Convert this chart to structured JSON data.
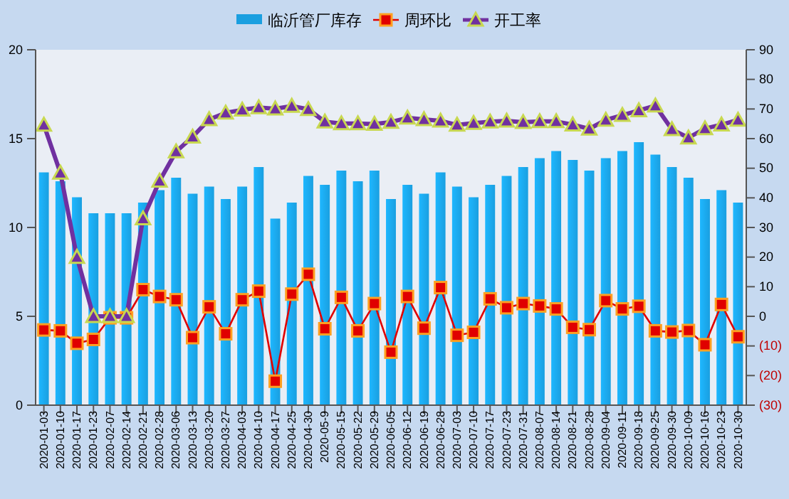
{
  "chart_data": {
    "type": "bar",
    "categories": [
      "2020-01-03",
      "2020-01-10",
      "2020-01-17",
      "2020-01-23",
      "2020-02-07",
      "2020-02-14",
      "2020-02-21",
      "2020-02-28",
      "2020-03-06",
      "2020-03-13",
      "2020-03-20",
      "2020-03-27",
      "2020-04-03",
      "2020-04-10",
      "2020-04-17",
      "2020-04-25",
      "2020-04-30",
      "2020-05-9",
      "2020-05-15",
      "2020-05-22",
      "2020-05-29",
      "2020-06-05",
      "2020-06-12",
      "2020-06-19",
      "2020-06-28",
      "2020-07-03",
      "2020-07-10",
      "2020-07-17",
      "2020-07-23",
      "2020-07-31",
      "2020-08-07",
      "2020-08-14",
      "2020-08-21",
      "2020-08-28",
      "2020-09-04",
      "2020-09-11",
      "2020-09-18",
      "2020-09-25",
      "2020-09-30",
      "2020-10-09",
      "2020-10-16",
      "2020-10-23",
      "2020-10-30"
    ],
    "series": [
      {
        "name": "临沂管厂库存",
        "color": "#1a9fe0",
        "values": [
          13.1,
          12.6,
          11.7,
          10.8,
          10.8,
          10.8,
          11.4,
          12.1,
          12.8,
          11.9,
          12.3,
          11.6,
          12.3,
          13.4,
          10.5,
          11.4,
          12.9,
          12.4,
          13.2,
          12.6,
          13.2,
          11.6,
          12.4,
          11.9,
          13.1,
          12.3,
          11.7,
          12.4,
          12.9,
          13.4,
          13.9,
          14.3,
          13.8,
          13.2,
          13.9,
          14.3,
          14.8,
          14.1,
          13.4,
          12.8,
          11.6,
          12.1,
          11.4
        ]
      },
      {
        "name": "周环比",
        "type": "line",
        "axis": "y2",
        "marker": "square",
        "color": "#e00000",
        "values": [
          -4.6,
          -4.9,
          -9.1,
          -7.8,
          -0.5,
          -0.5,
          9,
          6.7,
          5.6,
          -7.2,
          3.2,
          -5.9,
          5.6,
          8.5,
          -21.9,
          7.5,
          14.2,
          -4.2,
          6.4,
          -4.9,
          4.3,
          -12.1,
          6.7,
          -4,
          9.7,
          -6.4,
          -5.4,
          5.9,
          2.9,
          4.3,
          3.5,
          2.5,
          -3.7,
          -4.5,
          5.3,
          2.5,
          3.4,
          -4.9,
          -5.3,
          -4.8,
          -9.6,
          4,
          -6.9
        ]
      },
      {
        "name": "开工率",
        "type": "line",
        "axis": "y2",
        "marker": "triangle",
        "color": "#7030a0",
        "values": [
          64.6,
          48.4,
          20,
          0,
          0,
          0,
          33,
          45.7,
          55.6,
          60.6,
          66.5,
          68.7,
          69.7,
          70.5,
          70.1,
          71,
          69.9,
          65.7,
          65.1,
          65.1,
          64.9,
          65.6,
          67,
          66.5,
          66,
          64.6,
          65.2,
          65.7,
          66,
          65.5,
          65.8,
          65.8,
          64.7,
          63.3,
          66.3,
          67.9,
          69.5,
          71.1,
          63.1,
          60.3,
          63.4,
          64.7,
          66.3
        ]
      }
    ],
    "ylim": [
      0,
      20
    ],
    "yticks": [
      0,
      5,
      10,
      15,
      20
    ],
    "y2lim": [
      -30,
      90
    ],
    "y2ticks": [
      {
        "value": -30,
        "label": "(30)"
      },
      {
        "value": -20,
        "label": "(20)"
      },
      {
        "value": -10,
        "label": "(10)"
      },
      0,
      10,
      20,
      30,
      40,
      50,
      60,
      70,
      80,
      90
    ],
    "legend": "top",
    "grid": false
  }
}
